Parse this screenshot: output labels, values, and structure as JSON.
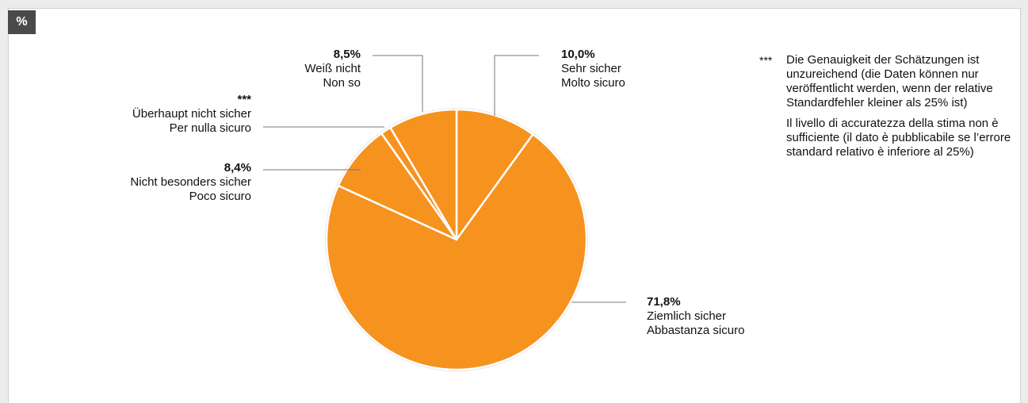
{
  "unit_label": "%",
  "colors": {
    "slice": "#f6921e",
    "slice_border": "#ffffff",
    "pie_edge": "#e2e2e2",
    "leader": "#777777"
  },
  "chart_data": {
    "type": "pie",
    "start_angle_deg": 0,
    "direction": "clockwise",
    "slices": [
      {
        "value": 10.0,
        "value_label": "10,0%",
        "label_de": "Sehr sicher",
        "label_it": "Molto sicuro"
      },
      {
        "value": 71.8,
        "value_label": "71,8%",
        "label_de": "Ziemlich sicher",
        "label_it": "Abbastanza sicuro"
      },
      {
        "value": 8.4,
        "value_label": "8,4%",
        "label_de": "Nicht besonders sicher",
        "label_it": "Poco sicuro"
      },
      {
        "value": 1.3,
        "value_label": "***",
        "label_de": "Überhaupt nicht sicher",
        "label_it": "Per nulla sicuro"
      },
      {
        "value": 8.5,
        "value_label": "8,5%",
        "label_de": "Weiß nicht",
        "label_it": "Non so"
      }
    ]
  },
  "note": {
    "marker": "***",
    "text_de": "Die Genauigkeit der Schätzungen ist unzureichend (die Daten können nur veröffentlicht werden, wenn der relative Standardfehler kleiner als 25% ist)",
    "text_it": "Il livello di accuratezza della stima non è sufficiente (il dato è pubblicabile se l’errore standard relativo è inferiore al 25%)"
  }
}
